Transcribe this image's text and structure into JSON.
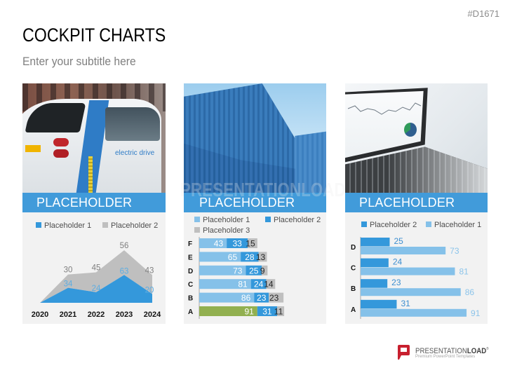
{
  "doc_id": "#D1671",
  "title": "COCKPIT CHARTS",
  "subtitle": "Enter your subtitle here",
  "watermark": "PRESENTATIONLOAD",
  "cards": [
    {
      "band_label": "PLACEHOLDER",
      "photo": "electric-car",
      "photo_text": "electric drive"
    },
    {
      "band_label": "PLACEHOLDER",
      "photo": "shipping-containers"
    },
    {
      "band_label": "PLACEHOLDER",
      "photo": "laptop-with-charts"
    }
  ],
  "colors": {
    "band": "#3494D8",
    "card_background": "#F2F2F2",
    "dark_blue": "#3498DB",
    "light_blue": "#85C1E9",
    "gray": "#BFBFBF",
    "green_highlight": "#92B050",
    "brand_red": "#C8202F"
  },
  "footer": {
    "brand_regular": "PRESENTATION",
    "brand_bold": "LOAD",
    "registered": "®",
    "tagline": "Premium PowerPoint Templates"
  },
  "chart_data": [
    {
      "type": "area",
      "stacked": true,
      "title": "",
      "xlabel": "",
      "ylabel": "",
      "categories": [
        "2020",
        "2021",
        "2022",
        "2023",
        "2024"
      ],
      "series": [
        {
          "name": "Placeholder 1",
          "values": [
            0,
            34,
            24,
            63,
            20
          ],
          "color": "#3498DB",
          "label_color": "#5DADE2"
        },
        {
          "name": "Placeholder 2",
          "values": [
            0,
            30,
            45,
            56,
            43
          ],
          "color": "#BFBFBF",
          "label_color": "#7F7F7F"
        }
      ],
      "legend_position": "top",
      "grid": false,
      "ylim": [
        0,
        119
      ]
    },
    {
      "type": "bar",
      "orientation": "horizontal",
      "stacked": true,
      "title": "",
      "categories": [
        "F",
        "E",
        "D",
        "C",
        "B",
        "A"
      ],
      "series": [
        {
          "name": "Placeholder 1",
          "values": [
            43,
            65,
            73,
            81,
            86,
            91
          ],
          "color": "#85C1E9",
          "highlight": {
            "category": "A",
            "color": "#92B050"
          },
          "label_color": "#FFFFFF"
        },
        {
          "name": "Placeholder 2",
          "values": [
            33,
            28,
            25,
            24,
            23,
            31
          ],
          "color": "#3498DB",
          "label_color": "#FFFFFF"
        },
        {
          "name": "Placeholder 3",
          "values": [
            15,
            13,
            9,
            14,
            23,
            11
          ],
          "color": "#BFBFBF",
          "label_color": "#262626"
        }
      ],
      "legend_position": "top",
      "grid": false
    },
    {
      "type": "bar",
      "orientation": "horizontal",
      "stacked": false,
      "title": "",
      "categories": [
        "D",
        "C",
        "B",
        "A"
      ],
      "series": [
        {
          "name": "Placeholder 2",
          "values": [
            25,
            24,
            23,
            31
          ],
          "color": "#3498DB",
          "label_color": "#3C8ED0"
        },
        {
          "name": "Placeholder 1",
          "values": [
            73,
            81,
            86,
            91
          ],
          "color": "#85C1E9",
          "label_color": "#8CC4EA"
        }
      ],
      "legend_position": "top",
      "grid": false
    }
  ]
}
